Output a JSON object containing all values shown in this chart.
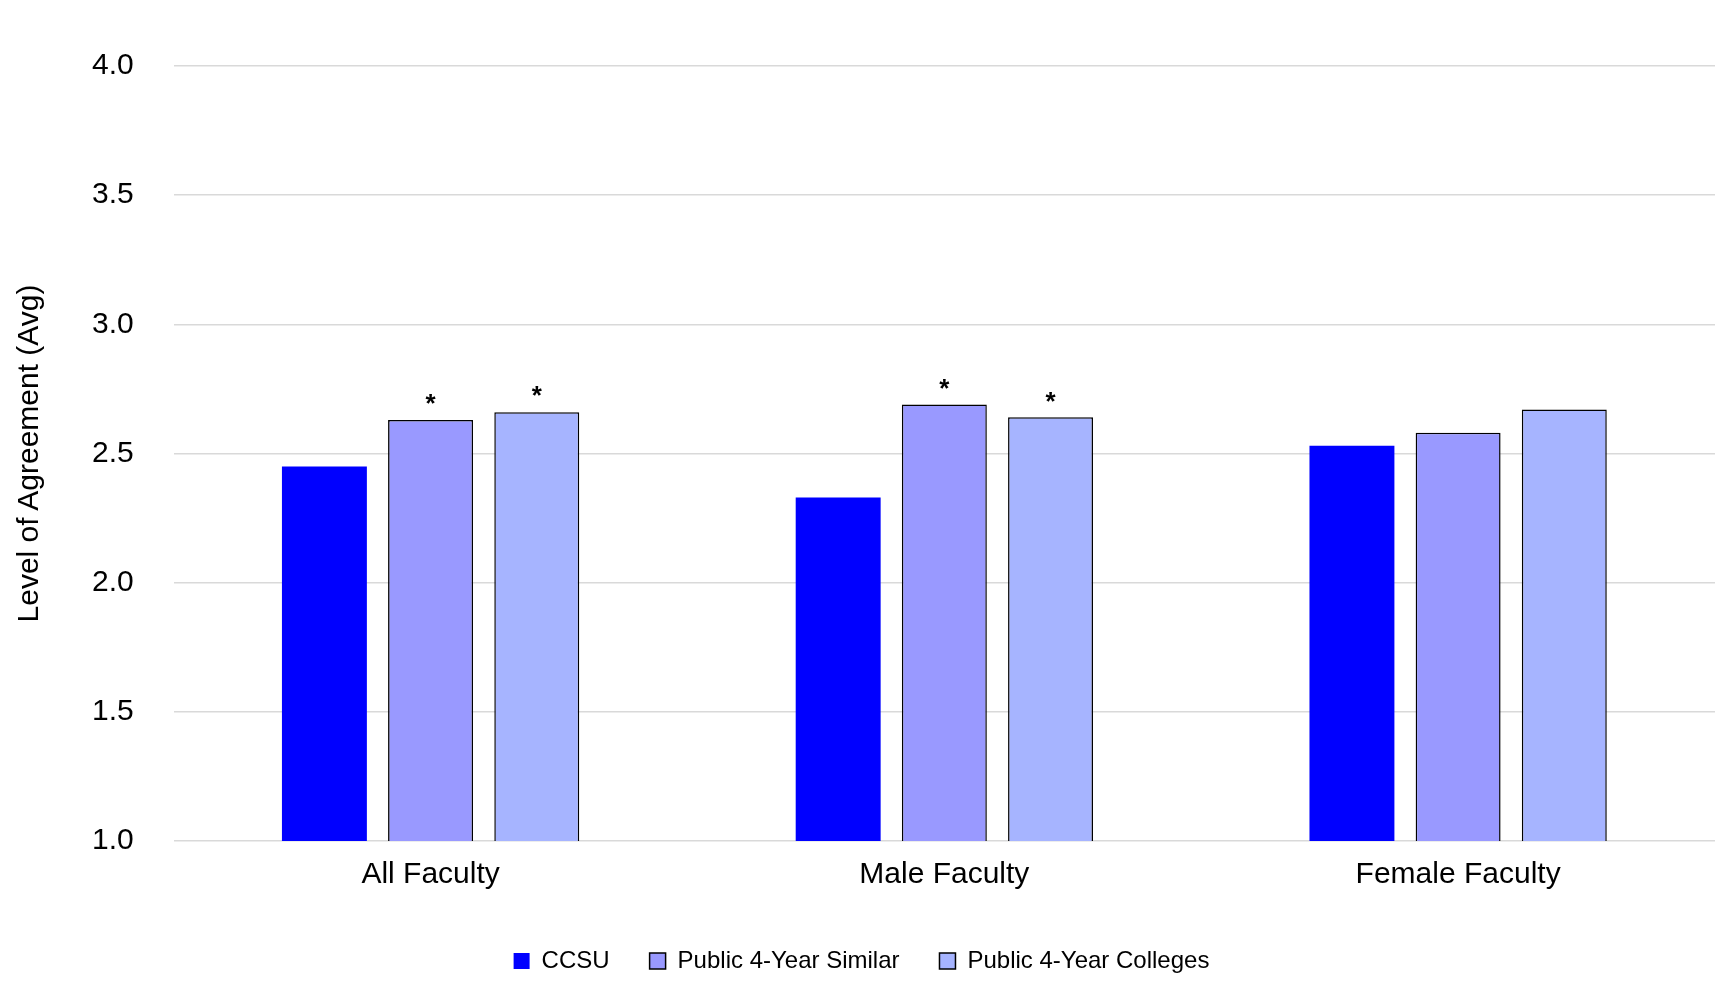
{
  "chart_data": {
    "type": "bar",
    "ylabel": "Level of Agreement (Avg)",
    "categories": [
      "All Faculty",
      "Male Faculty",
      "Female Faculty"
    ],
    "series": [
      {
        "name": "CCSU",
        "color": "#0000ff",
        "values": [
          2.45,
          2.33,
          2.53
        ]
      },
      {
        "name": "Public 4-Year Similar",
        "color": "#9999ff",
        "values": [
          2.63,
          2.69,
          2.58
        ]
      },
      {
        "name": "Public 4-Year Colleges",
        "color": "#a6b4ff",
        "values": [
          2.66,
          2.64,
          2.67
        ]
      }
    ],
    "ylim": [
      1,
      4
    ],
    "yticks": [
      {
        "value": 1,
        "label": "1.0"
      },
      {
        "value": 1.5,
        "label": "1.5"
      },
      {
        "value": 2,
        "label": "2.0"
      },
      {
        "value": 2.5,
        "label": "2.5"
      },
      {
        "value": 3,
        "label": "3.0"
      },
      {
        "value": 3.5,
        "label": "3.5"
      },
      {
        "value": 4,
        "label": "4.0"
      }
    ],
    "grid": "y",
    "legend": "bottom",
    "annotations": [
      {
        "text": "*",
        "x": "All Faculty",
        "y": 2.63
      },
      "*",
      {
        "text": "*",
        "x": "Male Faculty",
        "y": 2.69
      },
      "*"
    ]
  }
}
